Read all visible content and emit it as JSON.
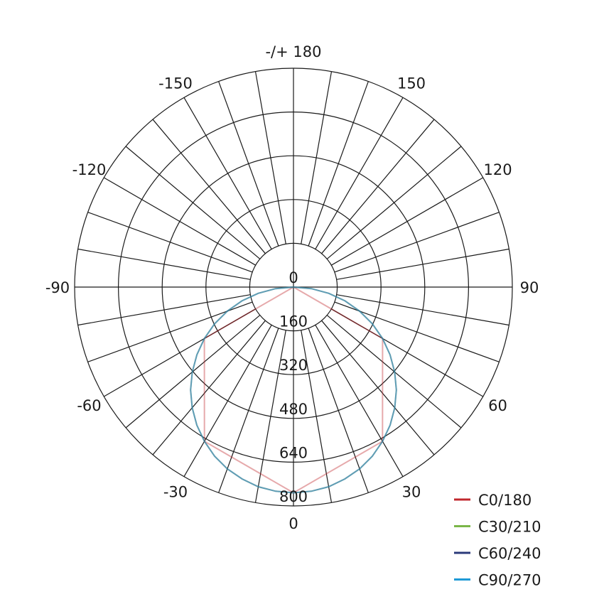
{
  "chart_data": {
    "type": "polar",
    "title": "",
    "radial_axis": {
      "range": [
        0,
        800
      ],
      "tick_labels": [
        "0",
        "160",
        "320",
        "480",
        "640",
        "800"
      ]
    },
    "angular_axis": {
      "zero_direction": "bottom",
      "grid_step_deg": 10,
      "tick_labels": [
        {
          "angle": 0,
          "label": "0"
        },
        {
          "angle": 30,
          "label": "30"
        },
        {
          "angle": 60,
          "label": "60"
        },
        {
          "angle": 90,
          "label": "90"
        },
        {
          "angle": 120,
          "label": "120"
        },
        {
          "angle": 150,
          "label": "150"
        },
        {
          "angle": 180,
          "label": "-/+ 180"
        },
        {
          "angle": -150,
          "label": "-150"
        },
        {
          "angle": -120,
          "label": "-120"
        },
        {
          "angle": -90,
          "label": "-90"
        },
        {
          "angle": -60,
          "label": "-60"
        },
        {
          "angle": -30,
          "label": "-30"
        }
      ]
    },
    "grid": true,
    "legend_position": "bottom-right",
    "series": [
      {
        "name": "C0/180",
        "color": "#c0272d",
        "angles": [
          -90,
          -60,
          -30,
          0,
          30,
          60,
          90
        ],
        "values": [
          0,
          376,
          651,
          752,
          651,
          376,
          0
        ]
      },
      {
        "name": "C30/210",
        "color": "#7ab648",
        "angles": [
          -90,
          -85,
          -80,
          -75,
          -70,
          -65,
          -60,
          -55,
          -50,
          -45,
          -40,
          -35,
          -30,
          -25,
          -20,
          -15,
          -10,
          -5,
          0,
          5,
          10,
          15,
          20,
          25,
          30,
          35,
          40,
          45,
          50,
          55,
          60,
          65,
          70,
          75,
          80,
          85,
          90
        ],
        "values": [
          0,
          66,
          131,
          195,
          257,
          318,
          376,
          431,
          483,
          532,
          576,
          616,
          651,
          682,
          707,
          726,
          741,
          749,
          752,
          749,
          741,
          726,
          707,
          682,
          651,
          616,
          576,
          532,
          483,
          431,
          376,
          318,
          257,
          195,
          131,
          66,
          0
        ]
      },
      {
        "name": "C60/240",
        "color": "#2b3a7a",
        "angles": [
          -90,
          -85,
          -80,
          -75,
          -70,
          -65,
          -60,
          -55,
          -50,
          -45,
          -40,
          -35,
          -30,
          -25,
          -20,
          -15,
          -10,
          -5,
          0,
          5,
          10,
          15,
          20,
          25,
          30,
          35,
          40,
          45,
          50,
          55,
          60,
          65,
          70,
          75,
          80,
          85,
          90
        ],
        "values": [
          0,
          66,
          131,
          195,
          257,
          318,
          376,
          431,
          483,
          532,
          576,
          616,
          651,
          682,
          707,
          726,
          741,
          749,
          752,
          749,
          741,
          726,
          707,
          682,
          651,
          616,
          576,
          532,
          483,
          431,
          376,
          318,
          257,
          195,
          131,
          66,
          0
        ]
      },
      {
        "name": "C90/270",
        "color": "#1e9ad6",
        "angles": [
          -90,
          -85,
          -80,
          -75,
          -70,
          -65,
          -60,
          -55,
          -50,
          -45,
          -40,
          -35,
          -30,
          -25,
          -20,
          -15,
          -10,
          -5,
          0,
          5,
          10,
          15,
          20,
          25,
          30,
          35,
          40,
          45,
          50,
          55,
          60,
          65,
          70,
          75,
          80,
          85,
          90
        ],
        "values": [
          0,
          66,
          131,
          195,
          257,
          318,
          376,
          431,
          483,
          532,
          576,
          616,
          651,
          682,
          707,
          726,
          741,
          749,
          752,
          749,
          741,
          726,
          707,
          682,
          651,
          616,
          576,
          532,
          483,
          431,
          376,
          318,
          257,
          195,
          131,
          66,
          0
        ]
      }
    ]
  }
}
